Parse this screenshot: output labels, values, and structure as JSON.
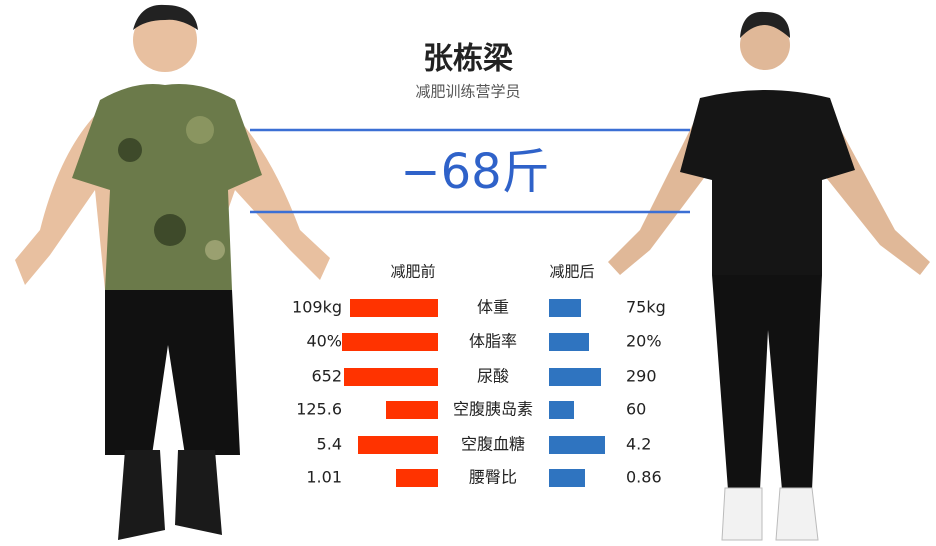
{
  "header": {
    "name": "张栋梁",
    "subtitle": "减肥训练营学员",
    "loss": "−68斤"
  },
  "comparison": {
    "before_heading": "减肥前",
    "after_heading": "减肥后",
    "rows": [
      {
        "label": "体重",
        "before": "109kg",
        "after": "75kg"
      },
      {
        "label": "体脂率",
        "before": "40%",
        "after": "20%"
      },
      {
        "label": "尿酸",
        "before": "652",
        "after": "290"
      },
      {
        "label": "空腹胰岛素",
        "before": "125.6",
        "after": "60"
      },
      {
        "label": "空腹血糖",
        "before": "5.4",
        "after": "4.2"
      },
      {
        "label": "腰臀比",
        "before": "1.01",
        "after": "0.86"
      }
    ]
  }
}
